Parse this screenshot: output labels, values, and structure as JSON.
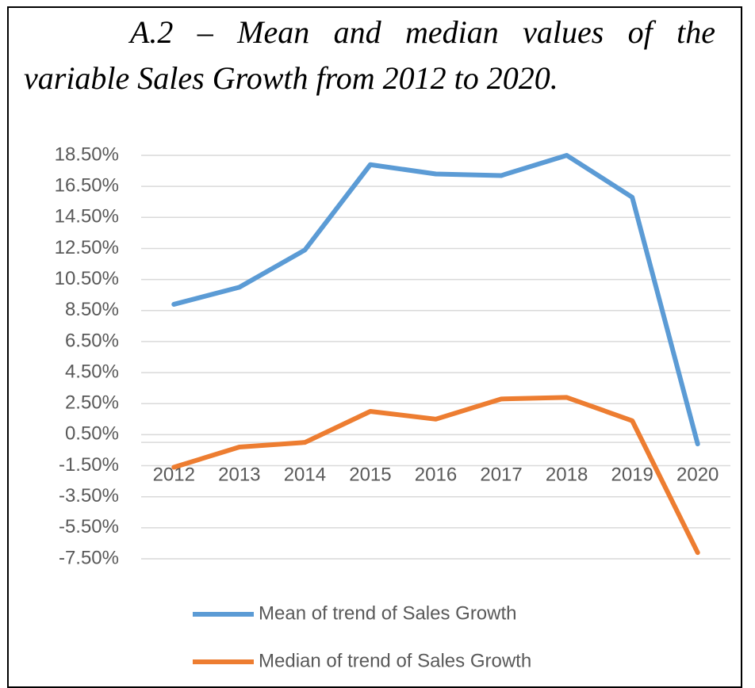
{
  "chart_data": {
    "type": "line",
    "title": "A.2 – Mean and median values of the variable Sales Growth from 2012 to 2020.",
    "categories": [
      "2012",
      "2013",
      "2014",
      "2015",
      "2016",
      "2017",
      "2018",
      "2019",
      "2020"
    ],
    "series": [
      {
        "name": "Mean of trend of Sales Growth",
        "color": "#5b9bd5",
        "values": [
          8.9,
          10.0,
          12.4,
          17.9,
          17.3,
          17.2,
          18.5,
          15.8,
          -0.1
        ]
      },
      {
        "name": "Median of trend of Sales Growth",
        "color": "#ed7d31",
        "values": [
          -1.6,
          -0.3,
          0.0,
          2.0,
          1.5,
          2.8,
          2.9,
          1.4,
          -7.1
        ]
      }
    ],
    "ylim": [
      -7.5,
      18.5
    ],
    "yticks": [
      {
        "value": 18.5,
        "label": "18.50%"
      },
      {
        "value": 16.5,
        "label": "16.50%"
      },
      {
        "value": 14.5,
        "label": "14.50%"
      },
      {
        "value": 12.5,
        "label": "12.50%"
      },
      {
        "value": 10.5,
        "label": "10.50%"
      },
      {
        "value": 8.5,
        "label": "8.50%"
      },
      {
        "value": 6.5,
        "label": "6.50%"
      },
      {
        "value": 4.5,
        "label": "4.50%"
      },
      {
        "value": 2.5,
        "label": "2.50%"
      },
      {
        "value": 0.5,
        "label": "0.50%"
      },
      {
        "value": -1.5,
        "label": "-1.50%"
      },
      {
        "value": -3.5,
        "label": "-3.50%"
      },
      {
        "value": -5.5,
        "label": "-5.50%"
      },
      {
        "value": -7.5,
        "label": "-7.50%"
      }
    ],
    "grid": true,
    "legend": "bottom"
  }
}
